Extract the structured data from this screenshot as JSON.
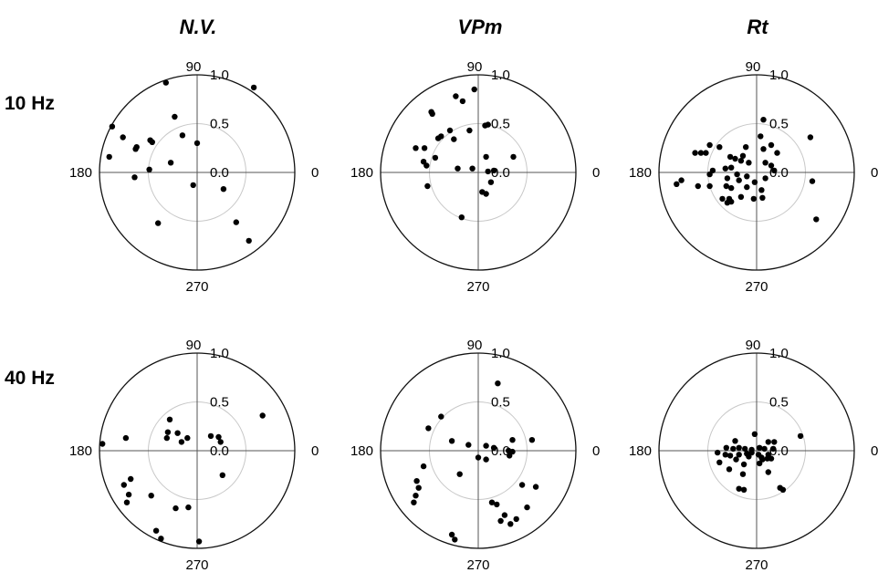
{
  "columns": [
    "N.V.",
    "VPm",
    "Rt"
  ],
  "rows": [
    "10 Hz",
    "40 Hz"
  ],
  "chart_data": [
    {
      "type": "scatter",
      "coordinate": "polar",
      "column": "N.V.",
      "row": "10 Hz",
      "angle_labels": [
        "90",
        "180",
        "0",
        "270"
      ],
      "radial_labels": [
        "1.0",
        "0.5",
        "0.0"
      ],
      "rlim": [
        0,
        1.0
      ],
      "points": [
        [
          -0.32,
          0.92
        ],
        [
          0.58,
          0.87
        ],
        [
          -0.87,
          0.47
        ],
        [
          -0.76,
          0.36
        ],
        [
          -0.9,
          0.16
        ],
        [
          -0.63,
          0.24
        ],
        [
          -0.62,
          0.26
        ],
        [
          -0.48,
          0.33
        ],
        [
          -0.46,
          0.31
        ],
        [
          -0.23,
          0.57
        ],
        [
          -0.15,
          0.38
        ],
        [
          0,
          0.3
        ],
        [
          -0.27,
          0.1
        ],
        [
          -0.49,
          0.03
        ],
        [
          -0.64,
          -0.05
        ],
        [
          -0.04,
          -0.13
        ],
        [
          0.27,
          -0.17
        ],
        [
          -0.4,
          -0.52
        ],
        [
          0.4,
          -0.51
        ],
        [
          0.53,
          -0.7
        ]
      ]
    },
    {
      "type": "scatter",
      "coordinate": "polar",
      "column": "VPm",
      "row": "10 Hz",
      "angle_labels": [
        "90",
        "180",
        "0",
        "270"
      ],
      "radial_labels": [
        "1.0",
        "0.5",
        "0.0"
      ],
      "rlim": [
        0,
        1.0
      ],
      "points": [
        [
          -0.23,
          0.78
        ],
        [
          -0.16,
          0.73
        ],
        [
          -0.04,
          0.85
        ],
        [
          -0.48,
          0.62
        ],
        [
          -0.47,
          0.6
        ],
        [
          -0.29,
          0.43
        ],
        [
          -0.38,
          0.37
        ],
        [
          -0.41,
          0.35
        ],
        [
          -0.25,
          0.34
        ],
        [
          -0.09,
          0.43
        ],
        [
          0.07,
          0.48
        ],
        [
          0.1,
          0.49
        ],
        [
          -0.64,
          0.25
        ],
        [
          -0.55,
          0.25
        ],
        [
          -0.44,
          0.15
        ],
        [
          -0.56,
          0.11
        ],
        [
          -0.53,
          0.07
        ],
        [
          -0.21,
          0.04
        ],
        [
          -0.06,
          0.04
        ],
        [
          0.08,
          0.16
        ],
        [
          0.36,
          0.16
        ],
        [
          0.1,
          0.01
        ],
        [
          0.16,
          0.02
        ],
        [
          -0.52,
          -0.14
        ],
        [
          0.13,
          -0.1
        ],
        [
          0.04,
          -0.2
        ],
        [
          0.08,
          -0.22
        ],
        [
          -0.17,
          -0.46
        ]
      ]
    },
    {
      "type": "scatter",
      "coordinate": "polar",
      "column": "Rt",
      "row": "10 Hz",
      "angle_labels": [
        "90",
        "180",
        "0",
        "270"
      ],
      "radial_labels": [
        "1.0",
        "0.5",
        "0.0"
      ],
      "rlim": [
        0,
        1.0
      ],
      "points": [
        [
          0.07,
          0.54
        ],
        [
          0.04,
          0.37
        ],
        [
          0.15,
          0.28
        ],
        [
          -0.11,
          0.26
        ],
        [
          0.07,
          0.24
        ],
        [
          0.21,
          0.2
        ],
        [
          -0.38,
          0.26
        ],
        [
          -0.48,
          0.28
        ],
        [
          -0.57,
          0.2
        ],
        [
          -0.52,
          0.2
        ],
        [
          -0.63,
          0.2
        ],
        [
          -0.14,
          0.17
        ],
        [
          -0.27,
          0.16
        ],
        [
          -0.22,
          0.14
        ],
        [
          -0.16,
          0.12
        ],
        [
          -0.08,
          0.1
        ],
        [
          0.09,
          0.1
        ],
        [
          0.15,
          0.07
        ],
        [
          -0.26,
          0.05
        ],
        [
          -0.32,
          0.04
        ],
        [
          0.18,
          0.02
        ],
        [
          -0.45,
          0.02
        ],
        [
          -0.48,
          -0.02
        ],
        [
          -0.2,
          -0.02
        ],
        [
          -0.1,
          -0.04
        ],
        [
          -0.3,
          -0.06
        ],
        [
          -0.18,
          -0.08
        ],
        [
          -0.02,
          -0.1
        ],
        [
          0.09,
          -0.06
        ],
        [
          -0.48,
          -0.14
        ],
        [
          -0.26,
          -0.16
        ],
        [
          -0.31,
          -0.14
        ],
        [
          -0.1,
          -0.15
        ],
        [
          -0.28,
          -0.27
        ],
        [
          -0.35,
          -0.27
        ],
        [
          -0.16,
          -0.25
        ],
        [
          0.05,
          -0.18
        ],
        [
          -0.6,
          -0.14
        ],
        [
          -0.82,
          -0.12
        ],
        [
          -0.77,
          -0.08
        ],
        [
          -0.03,
          -0.27
        ],
        [
          -0.26,
          -0.3
        ],
        [
          -0.3,
          -0.31
        ],
        [
          0.06,
          -0.26
        ],
        [
          0.55,
          0.36
        ],
        [
          0.57,
          -0.09
        ],
        [
          0.61,
          -0.48
        ]
      ]
    },
    {
      "type": "scatter",
      "coordinate": "polar",
      "column": "N.V.",
      "row": "40 Hz",
      "angle_labels": [
        "90",
        "180",
        "0",
        "270"
      ],
      "radial_labels": [
        "1.0",
        "0.5",
        "0.0"
      ],
      "rlim": [
        0,
        1.0
      ],
      "points": [
        [
          -0.97,
          0.07
        ],
        [
          -0.73,
          0.13
        ],
        [
          -0.31,
          0.13
        ],
        [
          -0.28,
          0.32
        ],
        [
          -0.3,
          0.19
        ],
        [
          -0.2,
          0.18
        ],
        [
          -0.1,
          0.13
        ],
        [
          -0.16,
          0.09
        ],
        [
          0.14,
          0.15
        ],
        [
          0.22,
          0.14
        ],
        [
          0.24,
          0.09
        ],
        [
          0.67,
          0.36
        ],
        [
          0.26,
          -0.25
        ],
        [
          -0.75,
          -0.35
        ],
        [
          -0.68,
          -0.29
        ],
        [
          -0.7,
          -0.45
        ],
        [
          -0.72,
          -0.53
        ],
        [
          -0.47,
          -0.46
        ],
        [
          -0.22,
          -0.59
        ],
        [
          -0.09,
          -0.58
        ],
        [
          -0.42,
          -0.82
        ],
        [
          -0.37,
          -0.9
        ],
        [
          0.02,
          -0.93
        ]
      ]
    },
    {
      "type": "scatter",
      "coordinate": "polar",
      "column": "VPm",
      "row": "40 Hz",
      "angle_labels": [
        "90",
        "180",
        "0",
        "270"
      ],
      "radial_labels": [
        "1.0",
        "0.5",
        "0.0"
      ],
      "rlim": [
        0,
        1.0
      ],
      "points": [
        [
          0.2,
          0.69
        ],
        [
          -0.38,
          0.35
        ],
        [
          -0.51,
          0.23
        ],
        [
          -0.27,
          0.1
        ],
        [
          -0.1,
          0.06
        ],
        [
          0.35,
          0.11
        ],
        [
          0.55,
          0.11
        ],
        [
          0.08,
          0.05
        ],
        [
          0.16,
          0.03
        ],
        [
          0.31,
          0.0
        ],
        [
          0.35,
          -0.01
        ],
        [
          0.32,
          -0.05
        ],
        [
          0.08,
          -0.09
        ],
        [
          0.0,
          -0.07
        ],
        [
          -0.19,
          -0.24
        ],
        [
          -0.56,
          -0.16
        ],
        [
          -0.63,
          -0.31
        ],
        [
          -0.61,
          -0.38
        ],
        [
          -0.64,
          -0.46
        ],
        [
          -0.66,
          -0.53
        ],
        [
          0.45,
          -0.35
        ],
        [
          0.59,
          -0.37
        ],
        [
          0.14,
          -0.53
        ],
        [
          0.19,
          -0.55
        ],
        [
          0.5,
          -0.58
        ],
        [
          0.27,
          -0.66
        ],
        [
          0.39,
          -0.7
        ],
        [
          0.33,
          -0.75
        ],
        [
          0.23,
          -0.72
        ],
        [
          -0.27,
          -0.86
        ],
        [
          -0.24,
          -0.91
        ]
      ]
    },
    {
      "type": "scatter",
      "coordinate": "polar",
      "column": "Rt",
      "row": "40 Hz",
      "angle_labels": [
        "90",
        "180",
        "0",
        "270"
      ],
      "radial_labels": [
        "1.0",
        "0.5",
        "0.0"
      ],
      "rlim": [
        0,
        1.0
      ],
      "points": [
        [
          -0.02,
          0.17
        ],
        [
          -0.22,
          0.1
        ],
        [
          0.18,
          0.09
        ],
        [
          0.12,
          0.09
        ],
        [
          -0.31,
          0.03
        ],
        [
          -0.24,
          0.02
        ],
        [
          -0.18,
          0.03
        ],
        [
          -0.12,
          0.02
        ],
        [
          -0.05,
          0.01
        ],
        [
          0.03,
          0.03
        ],
        [
          0.08,
          0.02
        ],
        [
          0.17,
          0.02
        ],
        [
          -0.4,
          -0.02
        ],
        [
          -0.32,
          -0.04
        ],
        [
          -0.27,
          -0.05
        ],
        [
          -0.18,
          -0.04
        ],
        [
          -0.1,
          -0.03
        ],
        [
          -0.05,
          -0.02
        ],
        [
          0.02,
          -0.04
        ],
        [
          0.12,
          -0.04
        ],
        [
          -0.21,
          -0.09
        ],
        [
          -0.08,
          -0.06
        ],
        [
          0.05,
          -0.07
        ],
        [
          0.15,
          -0.08
        ],
        [
          -0.38,
          -0.12
        ],
        [
          -0.13,
          -0.14
        ],
        [
          0.03,
          -0.13
        ],
        [
          -0.28,
          -0.19
        ],
        [
          -0.14,
          -0.24
        ],
        [
          0.12,
          -0.22
        ],
        [
          -0.18,
          -0.39
        ],
        [
          -0.13,
          -0.4
        ],
        [
          0.24,
          -0.38
        ],
        [
          0.27,
          -0.4
        ],
        [
          0.45,
          0.15
        ],
        [
          0.06,
          -0.09
        ],
        [
          0.11,
          -0.08
        ]
      ]
    }
  ]
}
